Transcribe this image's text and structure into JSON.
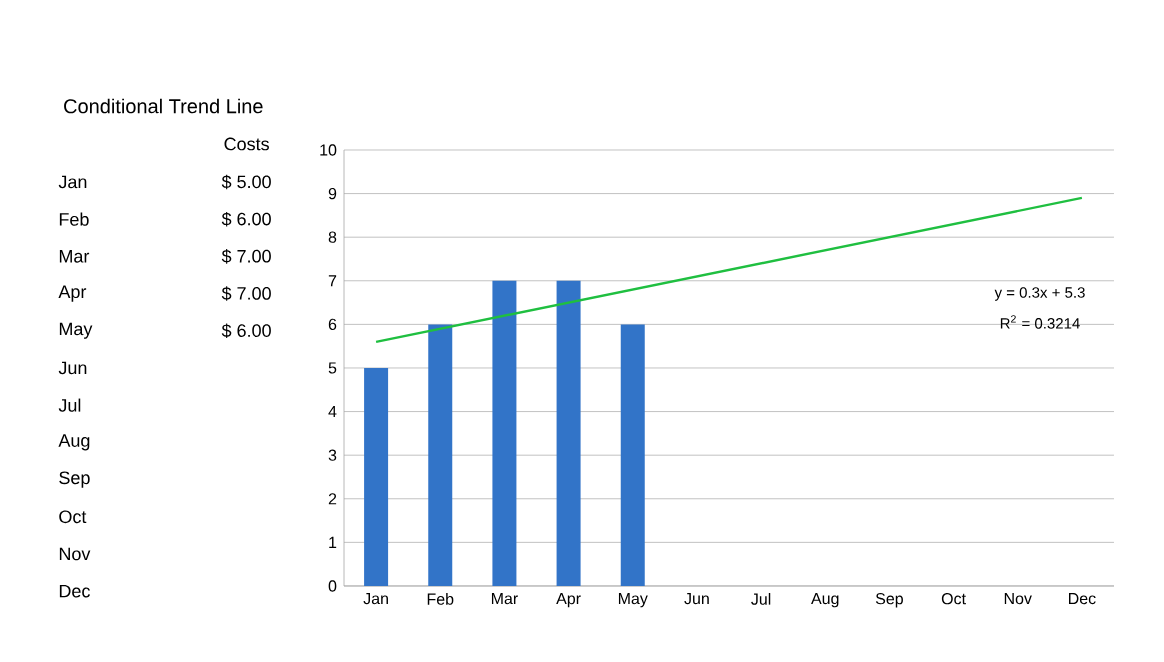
{
  "chart_data": {
    "type": "bar",
    "title": "Conditional Trend Line",
    "categories": [
      "Jan",
      "Feb",
      "Mar",
      "Apr",
      "May",
      "Jun",
      "Jul",
      "Aug",
      "Sep",
      "Oct",
      "Nov",
      "Dec"
    ],
    "series": [
      {
        "color": "#3274c8",
        "values": [
          5,
          6,
          7,
          7,
          6,
          null,
          null,
          null,
          null,
          null,
          null,
          null
        ]
      },
      {
        "type": "line",
        "color": "#1fbf40",
        "x": [
          "Jan",
          "Dec"
        ],
        "values": [
          5.6,
          8.9
        ]
      }
    ],
    "ylim": [
      0,
      10
    ],
    "yticks": [
      0,
      1,
      2,
      3,
      4,
      5,
      6,
      7,
      8,
      9,
      10
    ],
    "grid": "y",
    "annotations": [
      "y = 0.3x + 5.3",
      "R$^{2}$ = 0.3214",
      "Costs",
      "Jan",
      "Feb",
      "Mar",
      "Apr",
      "May",
      "Jun",
      "Jul",
      "Aug",
      "Sep",
      "Oct",
      "Nov",
      "Dec",
      "$ 5.00",
      "$ 6.00",
      "$ 7.00",
      "$ 7.00",
      "$ 6.00"
    ]
  }
}
